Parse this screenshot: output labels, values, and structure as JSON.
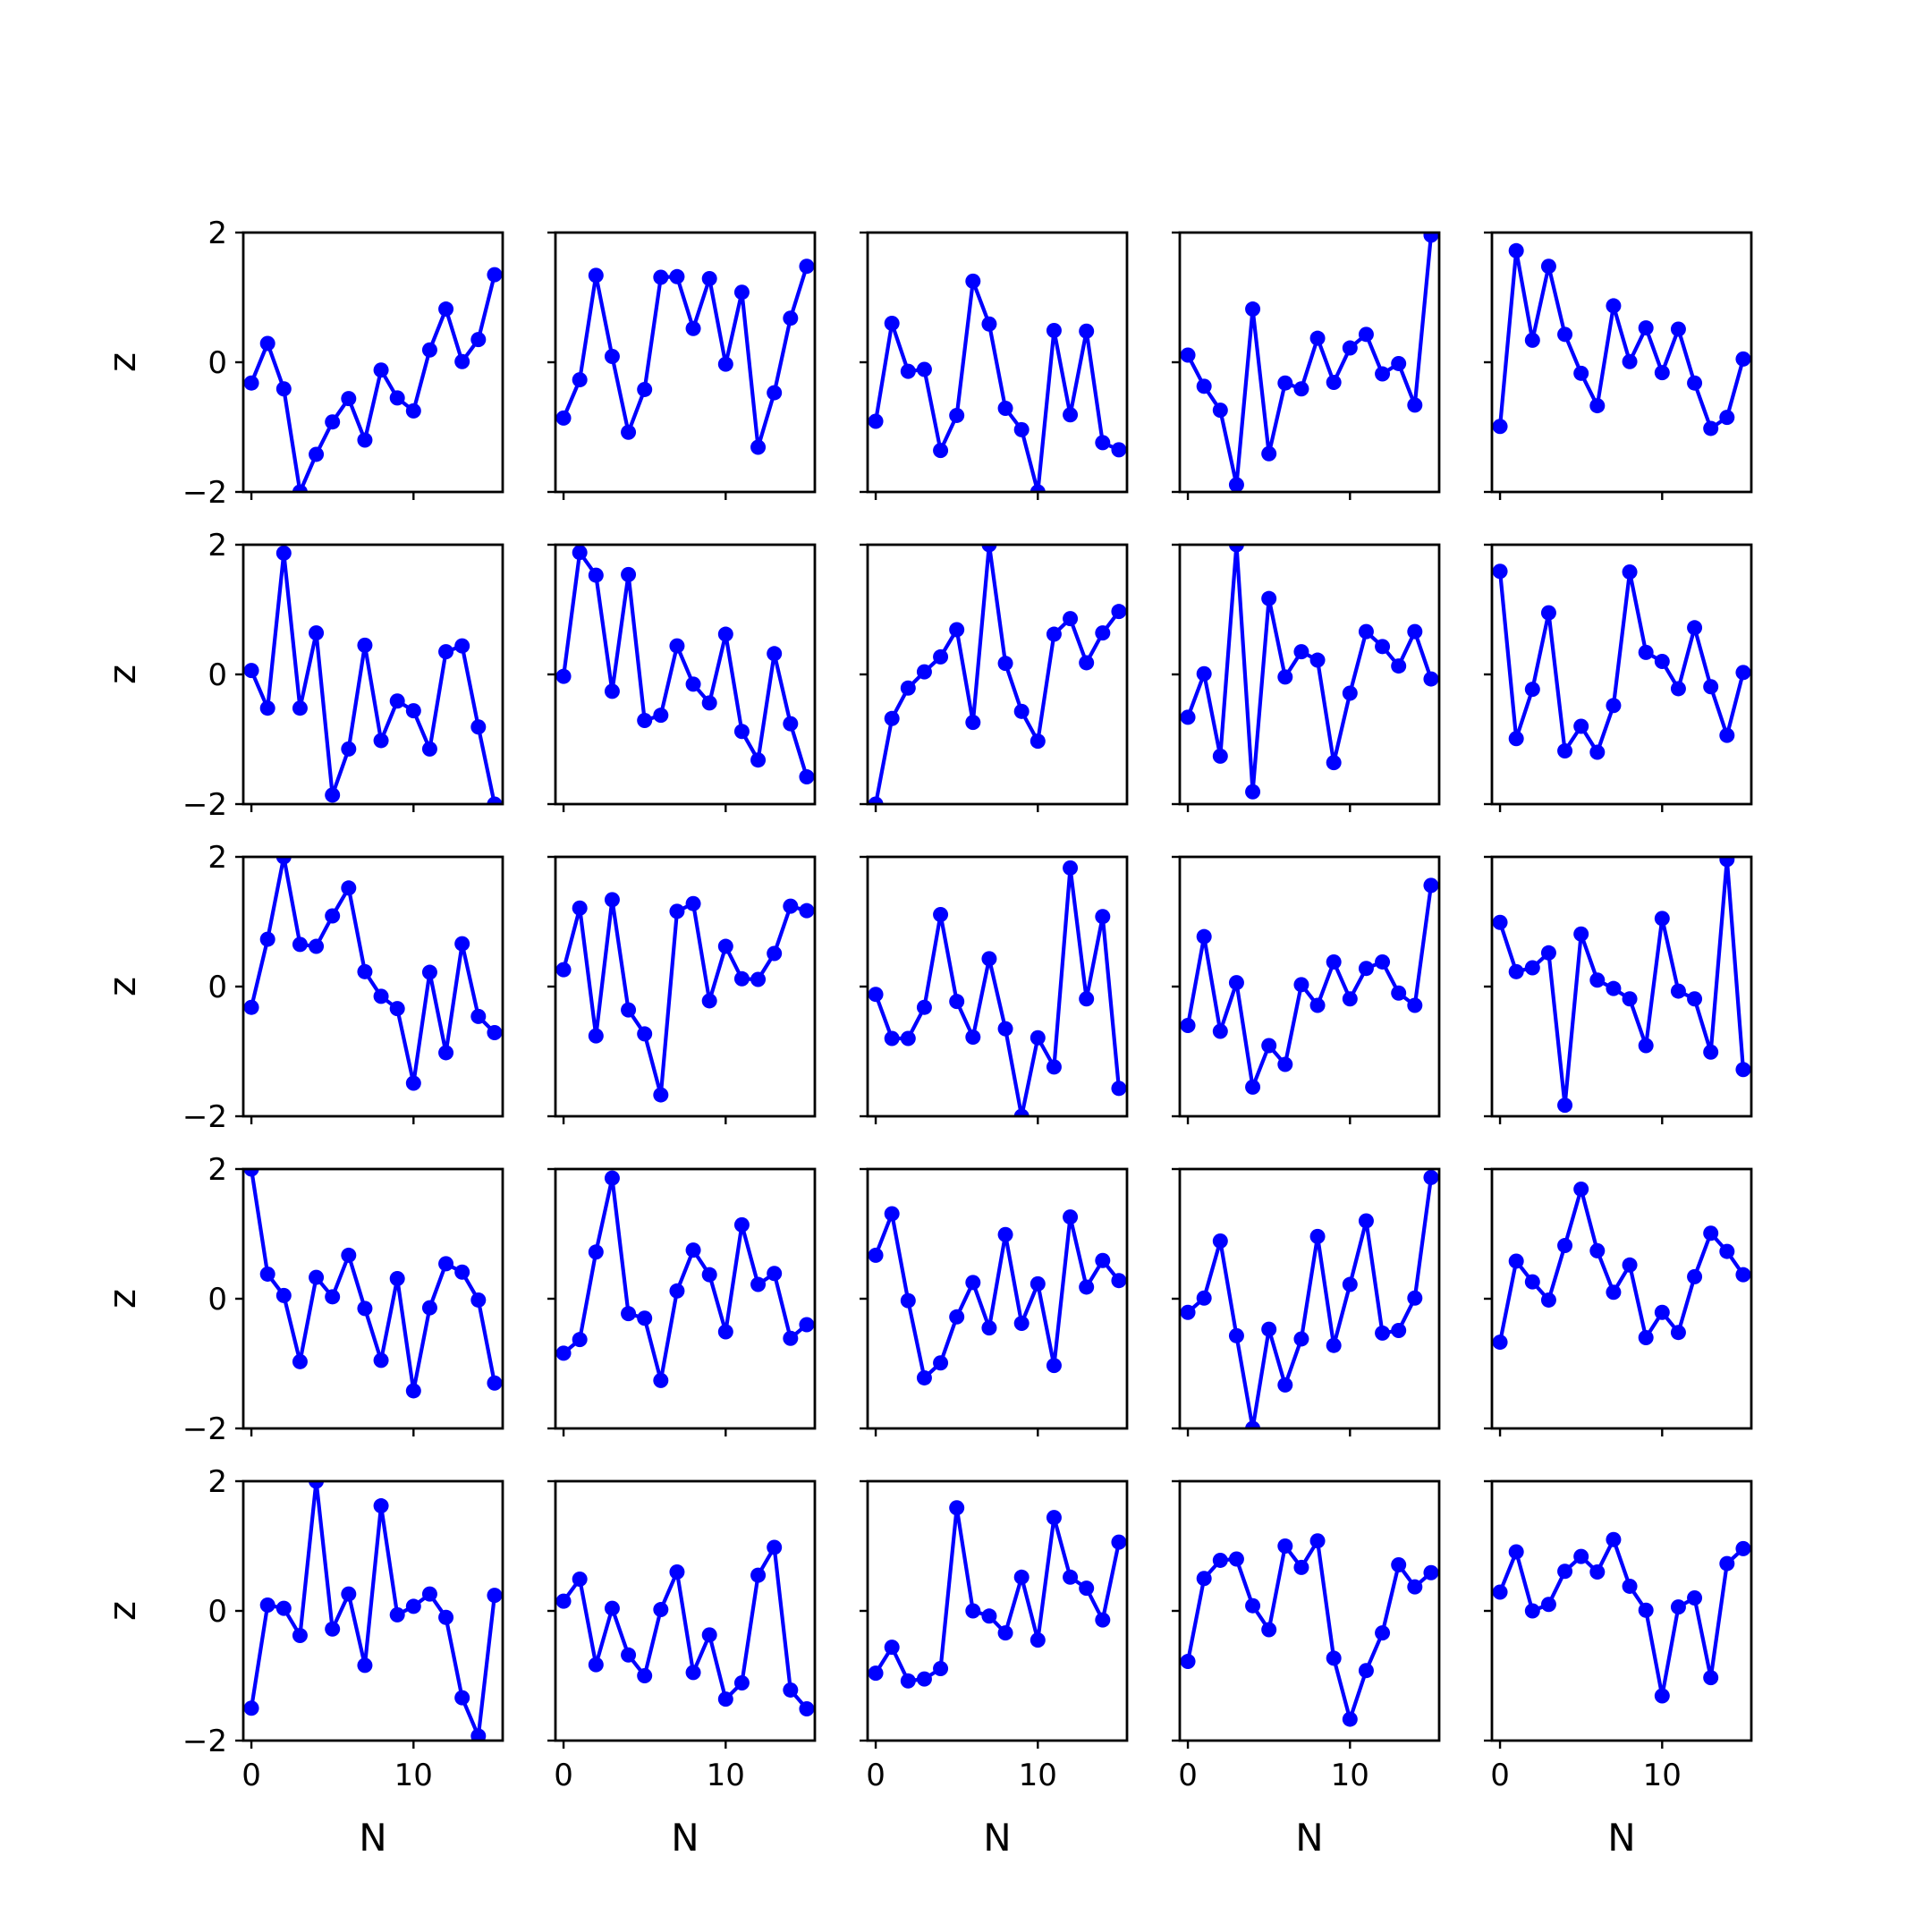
{
  "chart_data": {
    "type": "line",
    "layout": "grid",
    "rows": 5,
    "cols": 5,
    "x": [
      0,
      1,
      2,
      3,
      4,
      5,
      6,
      7,
      8,
      9,
      10,
      11,
      12,
      13,
      14,
      15
    ],
    "xlabel": "N",
    "ylabel": "z",
    "xlim": [
      -0.5,
      15.5
    ],
    "ylim": [
      -2,
      2
    ],
    "xticks": [
      0,
      10
    ],
    "xtick_labels": [
      "0",
      "10"
    ],
    "yticks": [
      2,
      0,
      -2
    ],
    "ytick_labels": [
      "2",
      "0",
      "−2"
    ],
    "line_color": "#0000ff",
    "marker": "circle",
    "grid": false,
    "legend": "none",
    "panels": [
      {
        "values": [
          -0.32,
          0.29,
          -0.41,
          -2.0,
          -1.42,
          -0.92,
          -0.56,
          -1.2,
          -0.12,
          -0.55,
          -0.75,
          0.19,
          0.82,
          0.01,
          0.35,
          1.35
        ]
      },
      {
        "values": [
          -0.86,
          -0.27,
          1.34,
          0.09,
          -1.08,
          -0.42,
          1.31,
          1.32,
          0.52,
          1.29,
          -0.03,
          1.08,
          -1.31,
          -0.47,
          0.68,
          1.48
        ]
      },
      {
        "values": [
          -0.91,
          0.6,
          -0.14,
          -0.11,
          -1.36,
          -0.82,
          1.25,
          0.59,
          -0.71,
          -1.04,
          -2.0,
          0.49,
          -0.81,
          0.48,
          -1.24,
          -1.35
        ]
      },
      {
        "values": [
          0.11,
          -0.37,
          -0.74,
          -1.89,
          0.82,
          -1.41,
          -0.32,
          -0.41,
          0.37,
          -0.31,
          0.22,
          0.43,
          -0.18,
          -0.02,
          -0.66,
          1.96
        ]
      },
      {
        "values": [
          -0.99,
          1.72,
          0.34,
          1.48,
          0.43,
          -0.17,
          -0.67,
          0.87,
          0.01,
          0.53,
          -0.16,
          0.51,
          -0.32,
          -1.02,
          -0.85,
          0.05
        ]
      },
      {
        "values": [
          0.06,
          -0.52,
          1.87,
          -0.52,
          0.64,
          -1.86,
          -1.15,
          0.45,
          -1.02,
          -0.41,
          -0.56,
          -1.15,
          0.35,
          0.44,
          -0.81,
          -2.0
        ]
      },
      {
        "values": [
          -0.03,
          1.88,
          1.53,
          -0.26,
          1.54,
          -0.71,
          -0.63,
          0.44,
          -0.15,
          -0.44,
          0.62,
          -0.88,
          -1.32,
          0.32,
          -0.76,
          -1.58
        ]
      },
      {
        "values": [
          -2.0,
          -0.68,
          -0.21,
          0.04,
          0.27,
          0.69,
          -0.74,
          2.0,
          0.17,
          -0.57,
          -1.03,
          0.62,
          0.86,
          0.18,
          0.64,
          0.97
        ]
      },
      {
        "values": [
          -0.66,
          0.01,
          -1.26,
          2.0,
          -1.81,
          1.17,
          -0.04,
          0.35,
          0.22,
          -1.36,
          -0.29,
          0.66,
          0.43,
          0.13,
          0.66,
          -0.07
        ]
      },
      {
        "values": [
          1.59,
          -0.99,
          -0.23,
          0.95,
          -1.18,
          -0.8,
          -1.2,
          -0.48,
          1.58,
          0.34,
          0.2,
          -0.22,
          0.72,
          -0.19,
          -0.94,
          0.03
        ]
      },
      {
        "values": [
          -0.32,
          0.73,
          2.0,
          0.65,
          0.62,
          1.09,
          1.52,
          0.23,
          -0.15,
          -0.34,
          -1.49,
          0.22,
          -1.02,
          0.66,
          -0.46,
          -0.71
        ]
      },
      {
        "values": [
          0.26,
          1.21,
          -0.76,
          1.34,
          -0.36,
          -0.73,
          -1.67,
          1.16,
          1.28,
          -0.22,
          0.62,
          0.12,
          0.11,
          0.51,
          1.24,
          1.17
        ]
      },
      {
        "values": [
          -0.12,
          -0.8,
          -0.8,
          -0.32,
          1.11,
          -0.23,
          -0.78,
          0.43,
          -0.65,
          -2.0,
          -0.79,
          -1.24,
          1.83,
          -0.19,
          1.08,
          -1.57
        ]
      },
      {
        "values": [
          -0.6,
          0.77,
          -0.69,
          0.06,
          -1.55,
          -0.91,
          -1.2,
          0.03,
          -0.29,
          0.38,
          -0.19,
          0.28,
          0.38,
          -0.1,
          -0.29,
          1.56
        ]
      },
      {
        "values": [
          0.99,
          0.23,
          0.29,
          0.52,
          -1.83,
          0.81,
          0.1,
          -0.03,
          -0.19,
          -0.91,
          1.05,
          -0.07,
          -0.19,
          -1.01,
          1.96,
          -1.28
        ]
      },
      {
        "values": [
          2.0,
          0.38,
          0.05,
          -0.97,
          0.33,
          0.03,
          0.67,
          -0.15,
          -0.95,
          0.31,
          -1.42,
          -0.14,
          0.54,
          0.41,
          -0.02,
          -1.3
        ]
      },
      {
        "values": [
          -0.84,
          -0.63,
          0.72,
          1.86,
          -0.23,
          -0.3,
          -1.26,
          0.12,
          0.75,
          0.37,
          -0.51,
          1.14,
          0.22,
          0.39,
          -0.61,
          -0.4
        ]
      },
      {
        "values": [
          0.67,
          1.31,
          -0.03,
          -1.22,
          -0.99,
          -0.28,
          0.25,
          -0.45,
          0.99,
          -0.38,
          0.23,
          -1.03,
          1.26,
          0.18,
          0.59,
          0.28
        ]
      },
      {
        "values": [
          -0.21,
          0.01,
          0.89,
          -0.57,
          -2.0,
          -0.47,
          -1.33,
          -0.62,
          0.96,
          -0.72,
          0.22,
          1.2,
          -0.53,
          -0.49,
          0.01,
          1.87
        ]
      },
      {
        "values": [
          -0.67,
          0.58,
          0.26,
          -0.02,
          0.82,
          1.69,
          0.74,
          0.1,
          0.52,
          -0.6,
          -0.21,
          -0.52,
          0.34,
          1.01,
          0.73,
          0.37
        ]
      },
      {
        "values": [
          -1.5,
          0.09,
          0.04,
          -0.38,
          2.0,
          -0.28,
          0.26,
          -0.84,
          1.62,
          -0.06,
          0.07,
          0.26,
          -0.1,
          -1.34,
          -1.93,
          0.24
        ]
      },
      {
        "values": [
          0.15,
          0.49,
          -0.83,
          0.04,
          -0.68,
          -1.0,
          0.02,
          0.6,
          -0.95,
          -0.37,
          -1.36,
          -1.11,
          0.55,
          0.98,
          -1.22,
          -1.51
        ]
      },
      {
        "values": [
          -0.96,
          -0.56,
          -1.08,
          -1.05,
          -0.89,
          1.59,
          0.0,
          -0.08,
          -0.34,
          0.52,
          -0.45,
          1.44,
          0.52,
          0.35,
          -0.14,
          1.06
        ]
      },
      {
        "values": [
          -0.78,
          0.5,
          0.78,
          0.8,
          0.08,
          -0.29,
          1.0,
          0.67,
          1.08,
          -0.73,
          -1.67,
          -0.92,
          -0.34,
          0.71,
          0.37,
          0.59
        ]
      },
      {
        "values": [
          0.29,
          0.91,
          -0.0,
          0.1,
          0.61,
          0.84,
          0.6,
          1.1,
          0.38,
          0.01,
          -1.31,
          0.06,
          0.2,
          -1.03,
          0.73,
          0.96
        ]
      }
    ]
  }
}
